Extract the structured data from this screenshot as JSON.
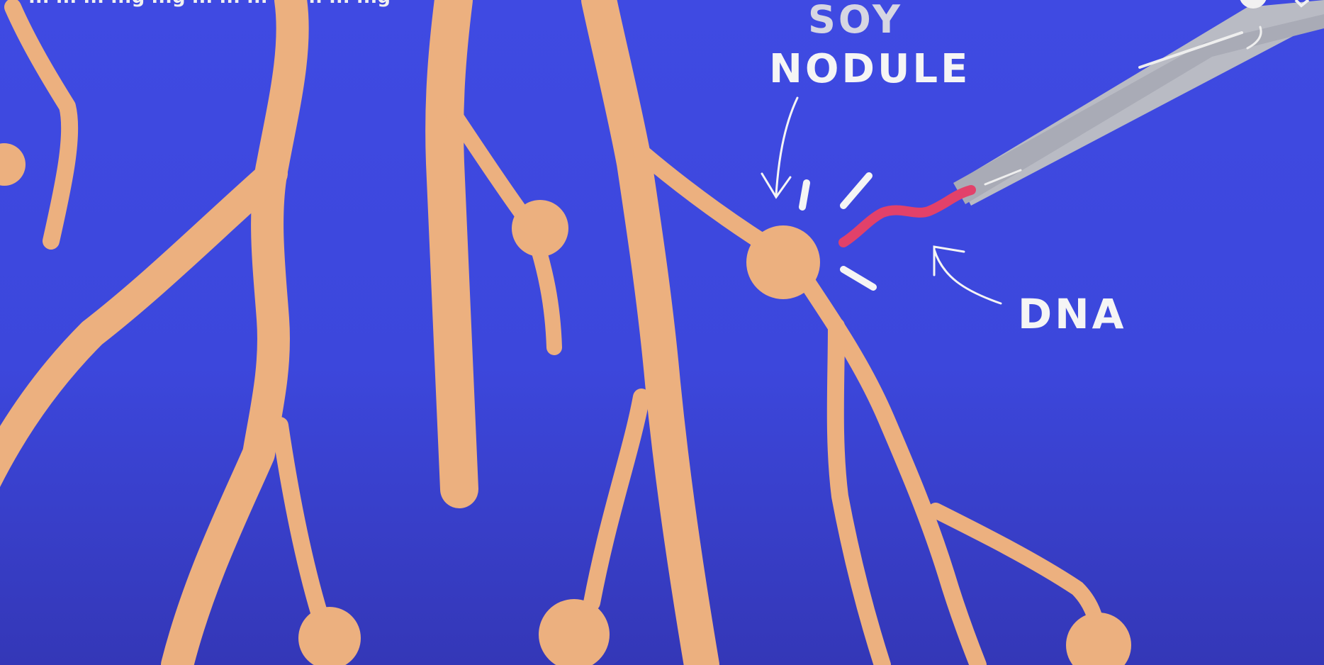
{
  "video_frame": {
    "title_overlay": "... ... ... ...g ...g ... ... ... ... ... ... ...g",
    "labels": {
      "soy": "SOY",
      "nodule": "NODULE",
      "dna": "DNA"
    },
    "colors": {
      "background": "#3f4ae2",
      "roots": "#ecb07f",
      "dna_strand": "#e2416a",
      "tweezers": "#b9bbc4",
      "annotation": "#f5f5f5"
    }
  }
}
